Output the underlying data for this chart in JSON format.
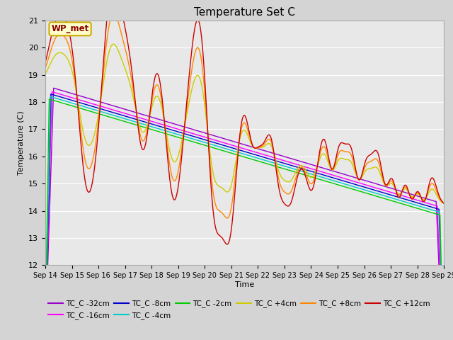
{
  "title": "Temperature Set C",
  "xlabel": "Time",
  "ylabel": "Temperature (C)",
  "ylim": [
    12.0,
    21.0
  ],
  "yticks": [
    12.0,
    13.0,
    14.0,
    15.0,
    16.0,
    17.0,
    18.0,
    19.0,
    20.0,
    21.0
  ],
  "x_labels": [
    "Sep 14",
    "Sep 15",
    "Sep 16",
    "Sep 17",
    "Sep 18",
    "Sep 19",
    "Sep 20",
    "Sep 21",
    "Sep 22",
    "Sep 23",
    "Sep 24",
    "Sep 25",
    "Sep 26",
    "Sep 27",
    "Sep 28",
    "Sep 29"
  ],
  "series_names": [
    "TC_C -32cm",
    "TC_C -16cm",
    "TC_C -8cm",
    "TC_C -4cm",
    "TC_C -2cm",
    "TC_C +4cm",
    "TC_C +8cm",
    "TC_C +12cm"
  ],
  "series_colors": [
    "#9900cc",
    "#ff00ff",
    "#0000cc",
    "#00cccc",
    "#00cc00",
    "#cccc00",
    "#ff8800",
    "#cc0000"
  ],
  "wp_met_label": "WP_met",
  "fig_facecolor": "#d4d4d4",
  "ax_facecolor": "#e8e8e8",
  "grid_color": "#ffffff",
  "n_days": 15,
  "n_per_day": 48,
  "legend_ncol": 6
}
